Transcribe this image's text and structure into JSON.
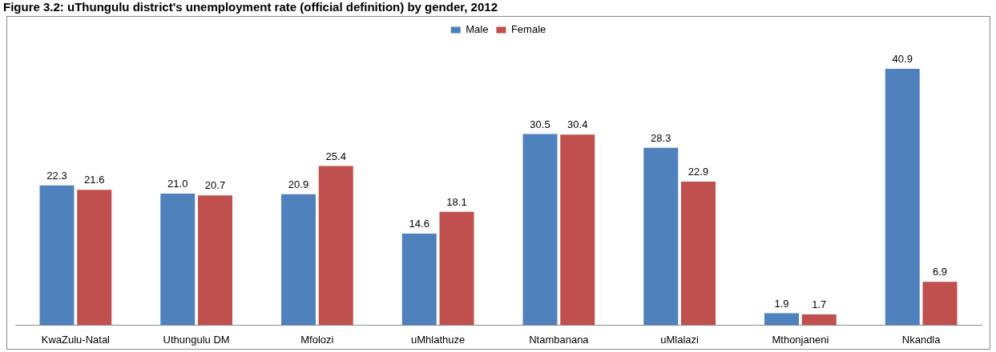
{
  "chart_data": {
    "type": "bar",
    "title": "Figure 3.2: uThungulu district's unemployment rate (official definition) by gender, 2012",
    "categories": [
      "KwaZulu-Natal",
      "Uthungulu DM",
      "Mfolozi",
      "uMhlathuze",
      "Ntambanana",
      "uMlalazi",
      "Mthonjaneni",
      "Nkandla"
    ],
    "series": [
      {
        "name": "Male",
        "color": "#4f81bd",
        "values": [
          22.3,
          21.0,
          20.9,
          14.6,
          30.5,
          28.3,
          1.9,
          40.9
        ],
        "value_labels": [
          "22.3",
          "21.0",
          "20.9",
          "14.6",
          "30.5",
          "28.3",
          "1.9",
          "40.9"
        ]
      },
      {
        "name": "Female",
        "color": "#c0504d",
        "values": [
          21.6,
          20.7,
          25.4,
          18.1,
          30.4,
          22.9,
          1.7,
          6.9
        ],
        "value_labels": [
          "21.6",
          "20.7",
          "25.4",
          "18.1",
          "30.4",
          "22.9",
          "1.7",
          "6.9"
        ]
      }
    ],
    "legend": "top"
  }
}
